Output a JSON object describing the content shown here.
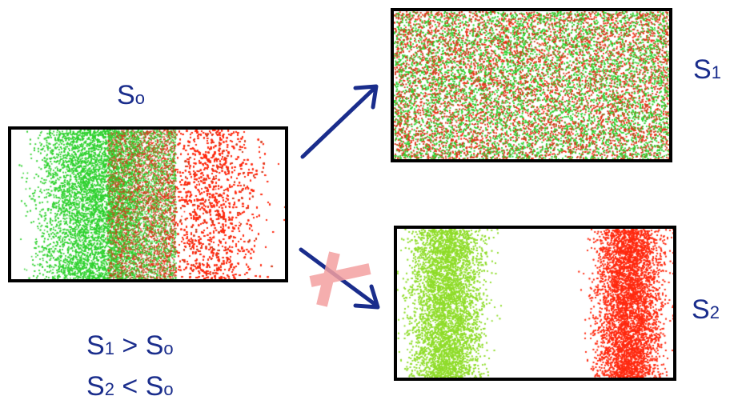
{
  "states": {
    "s0": {
      "base": "S",
      "sub": "o"
    },
    "s1": {
      "base": "S",
      "sub": "1"
    },
    "s2": {
      "base": "S",
      "sub": "2"
    }
  },
  "relations": {
    "line1": {
      "left_base": "S",
      "left_sub": "1",
      "op": ">",
      "right_base": "S",
      "right_sub": "o"
    },
    "line2": {
      "left_base": "S",
      "left_sub": "2",
      "op": "<",
      "right_base": "S",
      "right_sub": "o"
    }
  },
  "colors": {
    "label": "#1a2d8c",
    "arrow": "#1a2d8c",
    "cross": "#f4a0a0",
    "particle_green": "#2ed12e",
    "particle_light_green": "#8fdc2a",
    "particle_red": "#ff2a10",
    "particle_dark_red": "#d23a1a",
    "border": "#000000"
  },
  "icons": {
    "arrow_up": "arrow-up-right-icon",
    "arrow_down": "arrow-down-right-icon",
    "blocked": "cross-mark-icon"
  }
}
